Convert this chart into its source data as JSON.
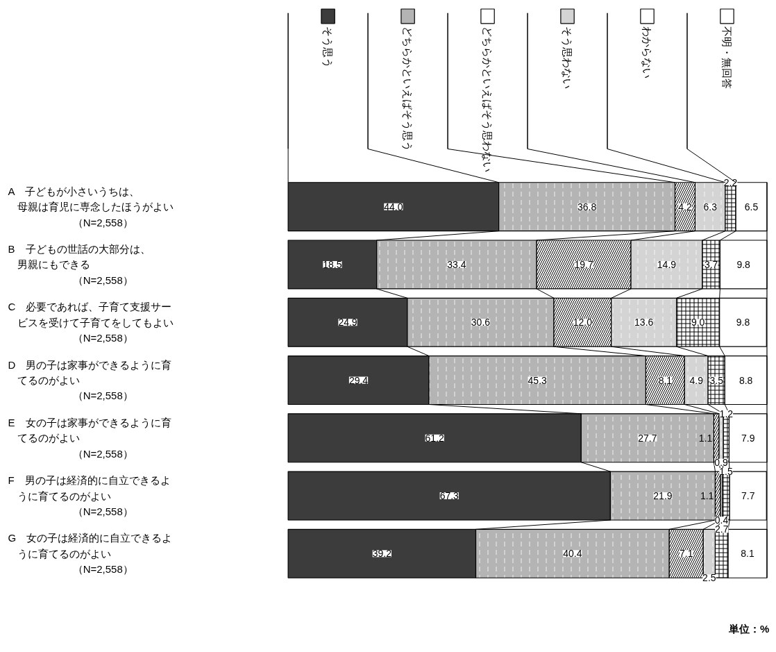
{
  "chart_data": {
    "type": "bar",
    "orientation": "horizontal",
    "stacked": true,
    "legend": "top",
    "categories": [
      "A　子どもが小さいうちは、母親は育児に専念したほうがよい（N=2,558）",
      "B　子どもの世話の大部分は、男親にもできる（N=2,558）",
      "C　必要であれば、子育て支援サービスを受けて子育てをしてもよい（N=2,558）",
      "D　男の子は家事ができるように育てるのがよい（N=2,558）",
      "E　女の子は家事ができるように育てるのがよい（N=2,558）",
      "F　男の子は経済的に自立できるように育てるのがよい（N=2,558）",
      "G　女の子は経済的に自立できるように育てるのがよい（N=2,558）"
    ],
    "series": [
      {
        "name": "そう思う",
        "color": "#3c3c3c",
        "values": [
          44.0,
          18.5,
          24.9,
          29.4,
          61.2,
          67.3,
          39.2
        ],
        "value_labels": [
          "44.0",
          "18.5",
          "24.9",
          "29.4",
          "61.2",
          "67.3",
          "39.2"
        ]
      },
      {
        "name": "どちらかといえばそう思う",
        "color": "#b4b4b4",
        "values": [
          36.8,
          33.4,
          30.6,
          45.3,
          27.7,
          21.9,
          40.4
        ],
        "value_labels": [
          "36.8",
          "33.4",
          "30.6",
          "45.3",
          "27.7",
          "21.9",
          "40.4"
        ]
      },
      {
        "name": "どちらかといえばそう思わない",
        "color": "#ffffff",
        "values": [
          4.2,
          19.7,
          12.0,
          8.1,
          1.1,
          1.1,
          7.1
        ],
        "value_labels": [
          "4.2",
          "19.7",
          "12.0",
          "8.1",
          "1.1",
          "1.1",
          "7.1"
        ]
      },
      {
        "name": "そう思わない",
        "color": "#d4d4d4",
        "values": [
          6.3,
          14.9,
          13.6,
          4.9,
          0.9,
          0.4,
          2.5
        ],
        "value_labels": [
          "6.3",
          "14.9",
          "13.6",
          "4.9",
          "0.9",
          "0.4",
          "2.5"
        ]
      },
      {
        "name": "わからない",
        "color": "#ffffff",
        "values": [
          2.2,
          3.7,
          9.0,
          3.5,
          1.2,
          1.5,
          2.7
        ],
        "value_labels": [
          "2.2",
          "3.7",
          "9.0",
          "3.5",
          "1.2",
          "1.5",
          "2.7"
        ]
      },
      {
        "name": "不明・無回答",
        "color": "#ffffff",
        "values": [
          6.5,
          9.8,
          9.8,
          8.8,
          7.9,
          7.7,
          8.1
        ],
        "value_labels": [
          "6.5",
          "9.8",
          "9.8",
          "8.8",
          "7.9",
          "7.7",
          "8.1"
        ]
      }
    ],
    "annotations": [
      "単位：%"
    ]
  }
}
